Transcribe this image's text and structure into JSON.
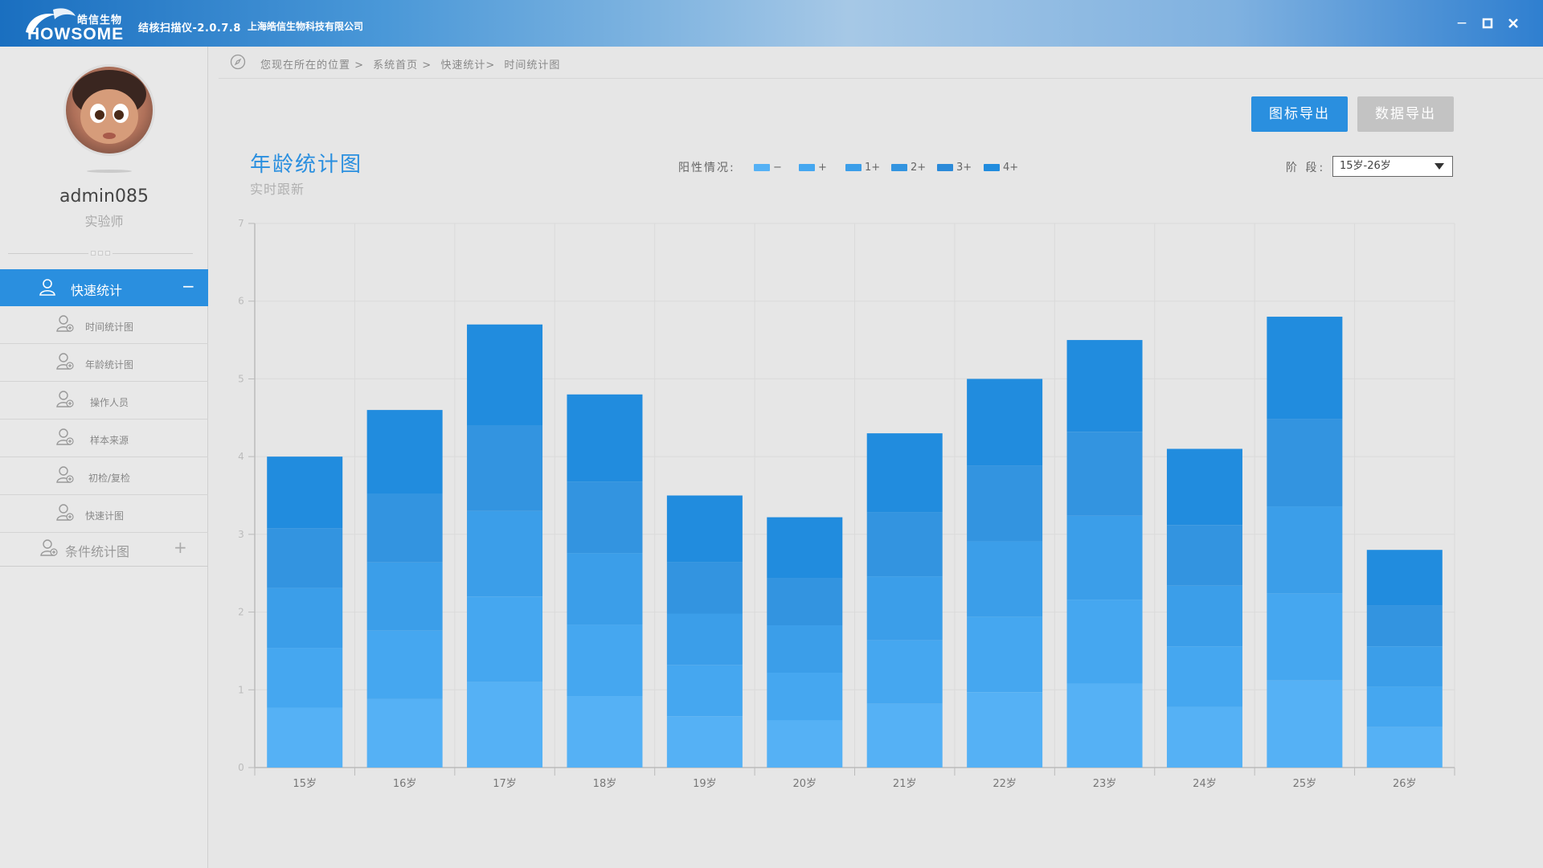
{
  "titlebar": {
    "logo_cn": "皓信生物",
    "logo_en": "HOWSOME",
    "app_title": "结核扫描仪-2.0.7.8",
    "company": "上海皓信生物科技有限公司",
    "minimize": "−",
    "maximize": "▫",
    "close": "✕"
  },
  "user": {
    "name": "admin085",
    "role": "实验师"
  },
  "sidebar": {
    "main_label": "快速统计",
    "main_toggle": "−",
    "items": [
      {
        "label": "时间统计图"
      },
      {
        "label": "年龄统计图"
      },
      {
        "label": "操作人员"
      },
      {
        "label": "样本来源"
      },
      {
        "label": "初检/复检"
      },
      {
        "label": "快速计图"
      }
    ],
    "cond_label": "条件统计图",
    "cond_toggle": "+"
  },
  "breadcrumb": {
    "prefix": "您现在所在的位置 >",
    "home": "系统首页 >",
    "level2": "快速统计>",
    "current": "时间统计图"
  },
  "actions": {
    "export_chart": "图标导出",
    "export_data": "数据导出"
  },
  "legend": {
    "title": "阳性情况:",
    "items": [
      "−",
      "+",
      "1+",
      "2+",
      "3+",
      "4+"
    ]
  },
  "stage": {
    "label": "阶 段:",
    "value": "15岁-26岁"
  },
  "colors": {
    "accent": "#2a8fdf",
    "series": [
      "#55b1f5",
      "#45a7f0",
      "#3b9ee9",
      "#3394e0",
      "#2b8ad9",
      "#218cde"
    ]
  },
  "chart_data": {
    "type": "bar",
    "stacked": true,
    "title": "年龄统计图",
    "subtitle": "实时跟新",
    "categories": [
      "15岁",
      "16岁",
      "17岁",
      "18岁",
      "19岁",
      "20岁",
      "21岁",
      "22岁",
      "23岁",
      "24岁",
      "25岁",
      "26岁"
    ],
    "ylim": [
      0,
      7
    ],
    "yticks": [
      0,
      1,
      2,
      3,
      4,
      5,
      6,
      7
    ],
    "grid": true,
    "series": [
      {
        "name": "−",
        "values": [
          0.77,
          0.88,
          1.1,
          0.92,
          0.66,
          0.61,
          0.82,
          0.97,
          1.08,
          0.78,
          1.12,
          0.52
        ]
      },
      {
        "name": "+",
        "values": [
          0.77,
          0.88,
          1.1,
          0.92,
          0.66,
          0.61,
          0.82,
          0.97,
          1.08,
          0.78,
          1.12,
          0.52
        ]
      },
      {
        "name": "1+",
        "values": [
          0.77,
          0.88,
          1.1,
          0.92,
          0.66,
          0.61,
          0.82,
          0.97,
          1.08,
          0.78,
          1.12,
          0.52
        ]
      },
      {
        "name": "2+",
        "values": [
          0.77,
          0.88,
          1.1,
          0.92,
          0.66,
          0.61,
          0.82,
          0.97,
          1.08,
          0.78,
          1.12,
          0.52
        ]
      },
      {
        "name": "3+",
        "values": [
          0.0,
          0.0,
          0.0,
          0.0,
          0.0,
          0.0,
          0.0,
          0.0,
          0.0,
          0.0,
          0.0,
          0.0
        ]
      },
      {
        "name": "4+",
        "values": [
          0.92,
          1.08,
          1.3,
          1.12,
          0.86,
          0.78,
          1.02,
          1.12,
          1.18,
          0.98,
          1.32,
          0.72
        ]
      }
    ]
  }
}
